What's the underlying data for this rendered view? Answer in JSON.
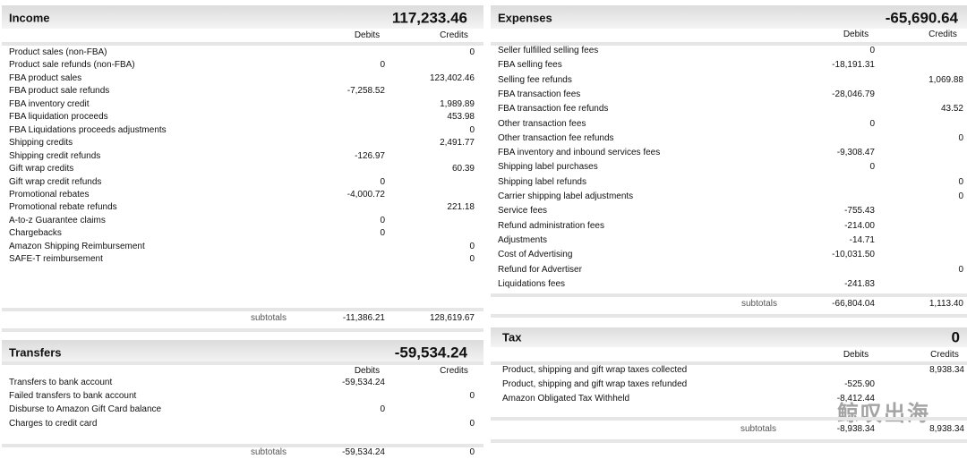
{
  "income": {
    "title": "Income",
    "total": "117,233.46",
    "debits_label": "Debits",
    "credits_label": "Credits",
    "rows": [
      {
        "label": "Product sales (non-FBA)",
        "credit": "0"
      },
      {
        "label": "Product sale refunds (non-FBA)",
        "debit": "0"
      },
      {
        "label": "FBA product sales",
        "credit": "123,402.46"
      },
      {
        "label": "FBA product sale refunds",
        "debit": "-7,258.52"
      },
      {
        "label": "FBA inventory credit",
        "credit": "1,989.89"
      },
      {
        "label": "FBA liquidation proceeds",
        "credit": "453.98"
      },
      {
        "label": "FBA Liquidations proceeds adjustments",
        "credit": "0"
      },
      {
        "label": "Shipping credits",
        "credit": "2,491.77"
      },
      {
        "label": "Shipping credit refunds",
        "debit": "-126.97"
      },
      {
        "label": "Gift wrap credits",
        "credit": "60.39"
      },
      {
        "label": "Gift wrap credit refunds",
        "debit": "0"
      },
      {
        "label": "Promotional rebates",
        "debit": "-4,000.72"
      },
      {
        "label": "Promotional rebate refunds",
        "credit": "221.18"
      },
      {
        "label": "A-to-z Guarantee claims",
        "debit": "0"
      },
      {
        "label": "Chargebacks",
        "debit": "0"
      },
      {
        "label": "Amazon Shipping Reimbursement",
        "credit": "0"
      },
      {
        "label": "SAFE-T reimbursement",
        "credit": "0"
      }
    ],
    "subtotals": {
      "label": "subtotals",
      "debit": "-11,386.21",
      "credit": "128,619.67"
    }
  },
  "transfers": {
    "title": "Transfers",
    "total": "-59,534.24",
    "debits_label": "Debits",
    "credits_label": "Credits",
    "rows": [
      {
        "label": "Transfers to bank account",
        "debit": "-59,534.24"
      },
      {
        "label": "Failed transfers to bank account",
        "credit": "0"
      },
      {
        "label": "Disburse to Amazon Gift Card balance",
        "debit": "0"
      },
      {
        "label": "Charges to credit card",
        "credit": "0"
      }
    ],
    "subtotals": {
      "label": "subtotals",
      "debit": "-59,534.24",
      "credit": "0"
    }
  },
  "expenses": {
    "title": "Expenses",
    "total": "-65,690.64",
    "debits_label": "Debits",
    "credits_label": "Credits",
    "rows": [
      {
        "label": "Seller fulfilled selling fees",
        "debit": "0"
      },
      {
        "label": "FBA selling fees",
        "debit": "-18,191.31"
      },
      {
        "label": "Selling fee refunds",
        "credit": "1,069.88"
      },
      {
        "label": "FBA transaction fees",
        "debit": "-28,046.79"
      },
      {
        "label": "FBA transaction fee refunds",
        "credit": "43.52"
      },
      {
        "label": "Other transaction fees",
        "debit": "0"
      },
      {
        "label": "Other transaction fee refunds",
        "credit": "0"
      },
      {
        "label": "FBA inventory and inbound services fees",
        "debit": "-9,308.47"
      },
      {
        "label": "Shipping label purchases",
        "debit": "0"
      },
      {
        "label": "Shipping label refunds",
        "credit": "0"
      },
      {
        "label": "Carrier shipping label adjustments",
        "credit": "0"
      },
      {
        "label": "Service fees",
        "debit": "-755.43"
      },
      {
        "label": "Refund administration fees",
        "debit": "-214.00"
      },
      {
        "label": "Adjustments",
        "debit": "-14.71"
      },
      {
        "label": "Cost of Advertising",
        "debit": "-10,031.50"
      },
      {
        "label": "Refund for Advertiser",
        "credit": "0"
      },
      {
        "label": "Liquidations fees",
        "debit": "-241.83"
      }
    ],
    "subtotals": {
      "label": "subtotals",
      "debit": "-66,804.04",
      "credit": "1,113.40"
    }
  },
  "tax": {
    "title": "Tax",
    "total": "0",
    "debits_label": "Debits",
    "credits_label": "Credits",
    "rows": [
      {
        "label": "Product, shipping and gift wrap taxes collected",
        "credit": "8,938.34"
      },
      {
        "label": "Product, shipping and gift wrap taxes refunded",
        "debit": "-525.90"
      },
      {
        "label": "Amazon Obligated Tax Withheld",
        "debit": "-8,412.44"
      }
    ],
    "subtotals": {
      "label": "subtotals",
      "debit": "-8,938.34",
      "credit": "8,938.34"
    }
  },
  "watermark": "鲸叹出海"
}
